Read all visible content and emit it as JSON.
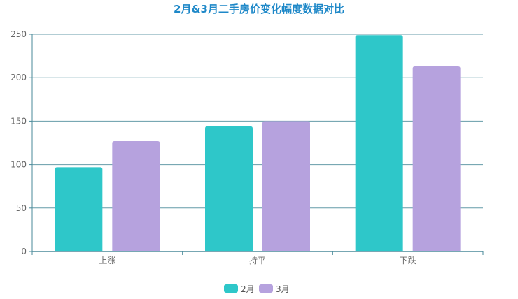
{
  "chart_data": {
    "type": "bar",
    "title": "2月&3月二手房价变化幅度数据对比",
    "categories": [
      "上涨",
      "持平",
      "下跌"
    ],
    "series": [
      {
        "name": "2月",
        "values": [
          97,
          144,
          249
        ],
        "color": "#2ec7c9"
      },
      {
        "name": "3月",
        "values": [
          127,
          150,
          213
        ],
        "color": "#b6a2de"
      }
    ],
    "ylim": [
      0,
      250
    ],
    "yticks": [
      0,
      50,
      100,
      150,
      200,
      250
    ],
    "grid": true,
    "legend_position": "bottom-center",
    "axis_color": "#4a8a9a"
  }
}
